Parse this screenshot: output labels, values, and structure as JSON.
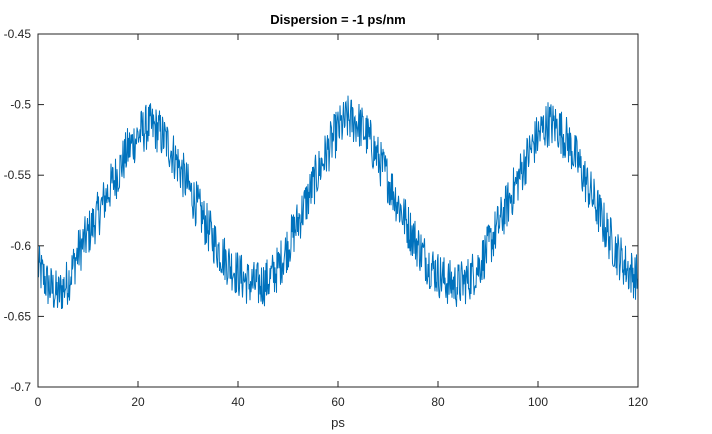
{
  "chart_data": {
    "type": "line",
    "title": "Dispersion = -1 ps/nm",
    "xlabel": "ps",
    "ylabel": "",
    "xlim": [
      0,
      120
    ],
    "ylim": [
      -0.7,
      -0.45
    ],
    "xticks": [
      0,
      20,
      40,
      60,
      80,
      100,
      120
    ],
    "xtick_labels": [
      "0",
      "20",
      "40",
      "60",
      "80",
      "100",
      "120"
    ],
    "yticks": [
      -0.7,
      -0.65,
      -0.6,
      -0.55,
      -0.5,
      -0.45
    ],
    "ytick_labels": [
      "-0.7",
      "-0.65",
      "-0.6",
      "-0.55",
      "-0.5",
      "-0.45"
    ],
    "grid": false,
    "line_color": "#0072BD",
    "series": [
      {
        "x": [
          0,
          2,
          4,
          6,
          8,
          10,
          12,
          14,
          16,
          18,
          20,
          22,
          24,
          26,
          28,
          30,
          32,
          34,
          36,
          38,
          40,
          42,
          44,
          46,
          48,
          50,
          52,
          54,
          56,
          58,
          60,
          62,
          64,
          66,
          68,
          70,
          72,
          74,
          76,
          78,
          80,
          82,
          84,
          86,
          88,
          90,
          92,
          94,
          96,
          98,
          100,
          102,
          104,
          106,
          108,
          110,
          112,
          114,
          116,
          118,
          120
        ],
        "y": [
          -0.615,
          -0.628,
          -0.635,
          -0.625,
          -0.605,
          -0.592,
          -0.578,
          -0.562,
          -0.548,
          -0.532,
          -0.522,
          -0.515,
          -0.518,
          -0.528,
          -0.542,
          -0.558,
          -0.573,
          -0.588,
          -0.602,
          -0.612,
          -0.62,
          -0.626,
          -0.628,
          -0.625,
          -0.616,
          -0.6,
          -0.583,
          -0.566,
          -0.548,
          -0.532,
          -0.518,
          -0.51,
          -0.513,
          -0.523,
          -0.538,
          -0.553,
          -0.57,
          -0.586,
          -0.6,
          -0.612,
          -0.62,
          -0.626,
          -0.628,
          -0.624,
          -0.615,
          -0.602,
          -0.586,
          -0.57,
          -0.553,
          -0.536,
          -0.522,
          -0.513,
          -0.516,
          -0.526,
          -0.541,
          -0.558,
          -0.575,
          -0.592,
          -0.606,
          -0.617,
          -0.623
        ]
      }
    ]
  }
}
